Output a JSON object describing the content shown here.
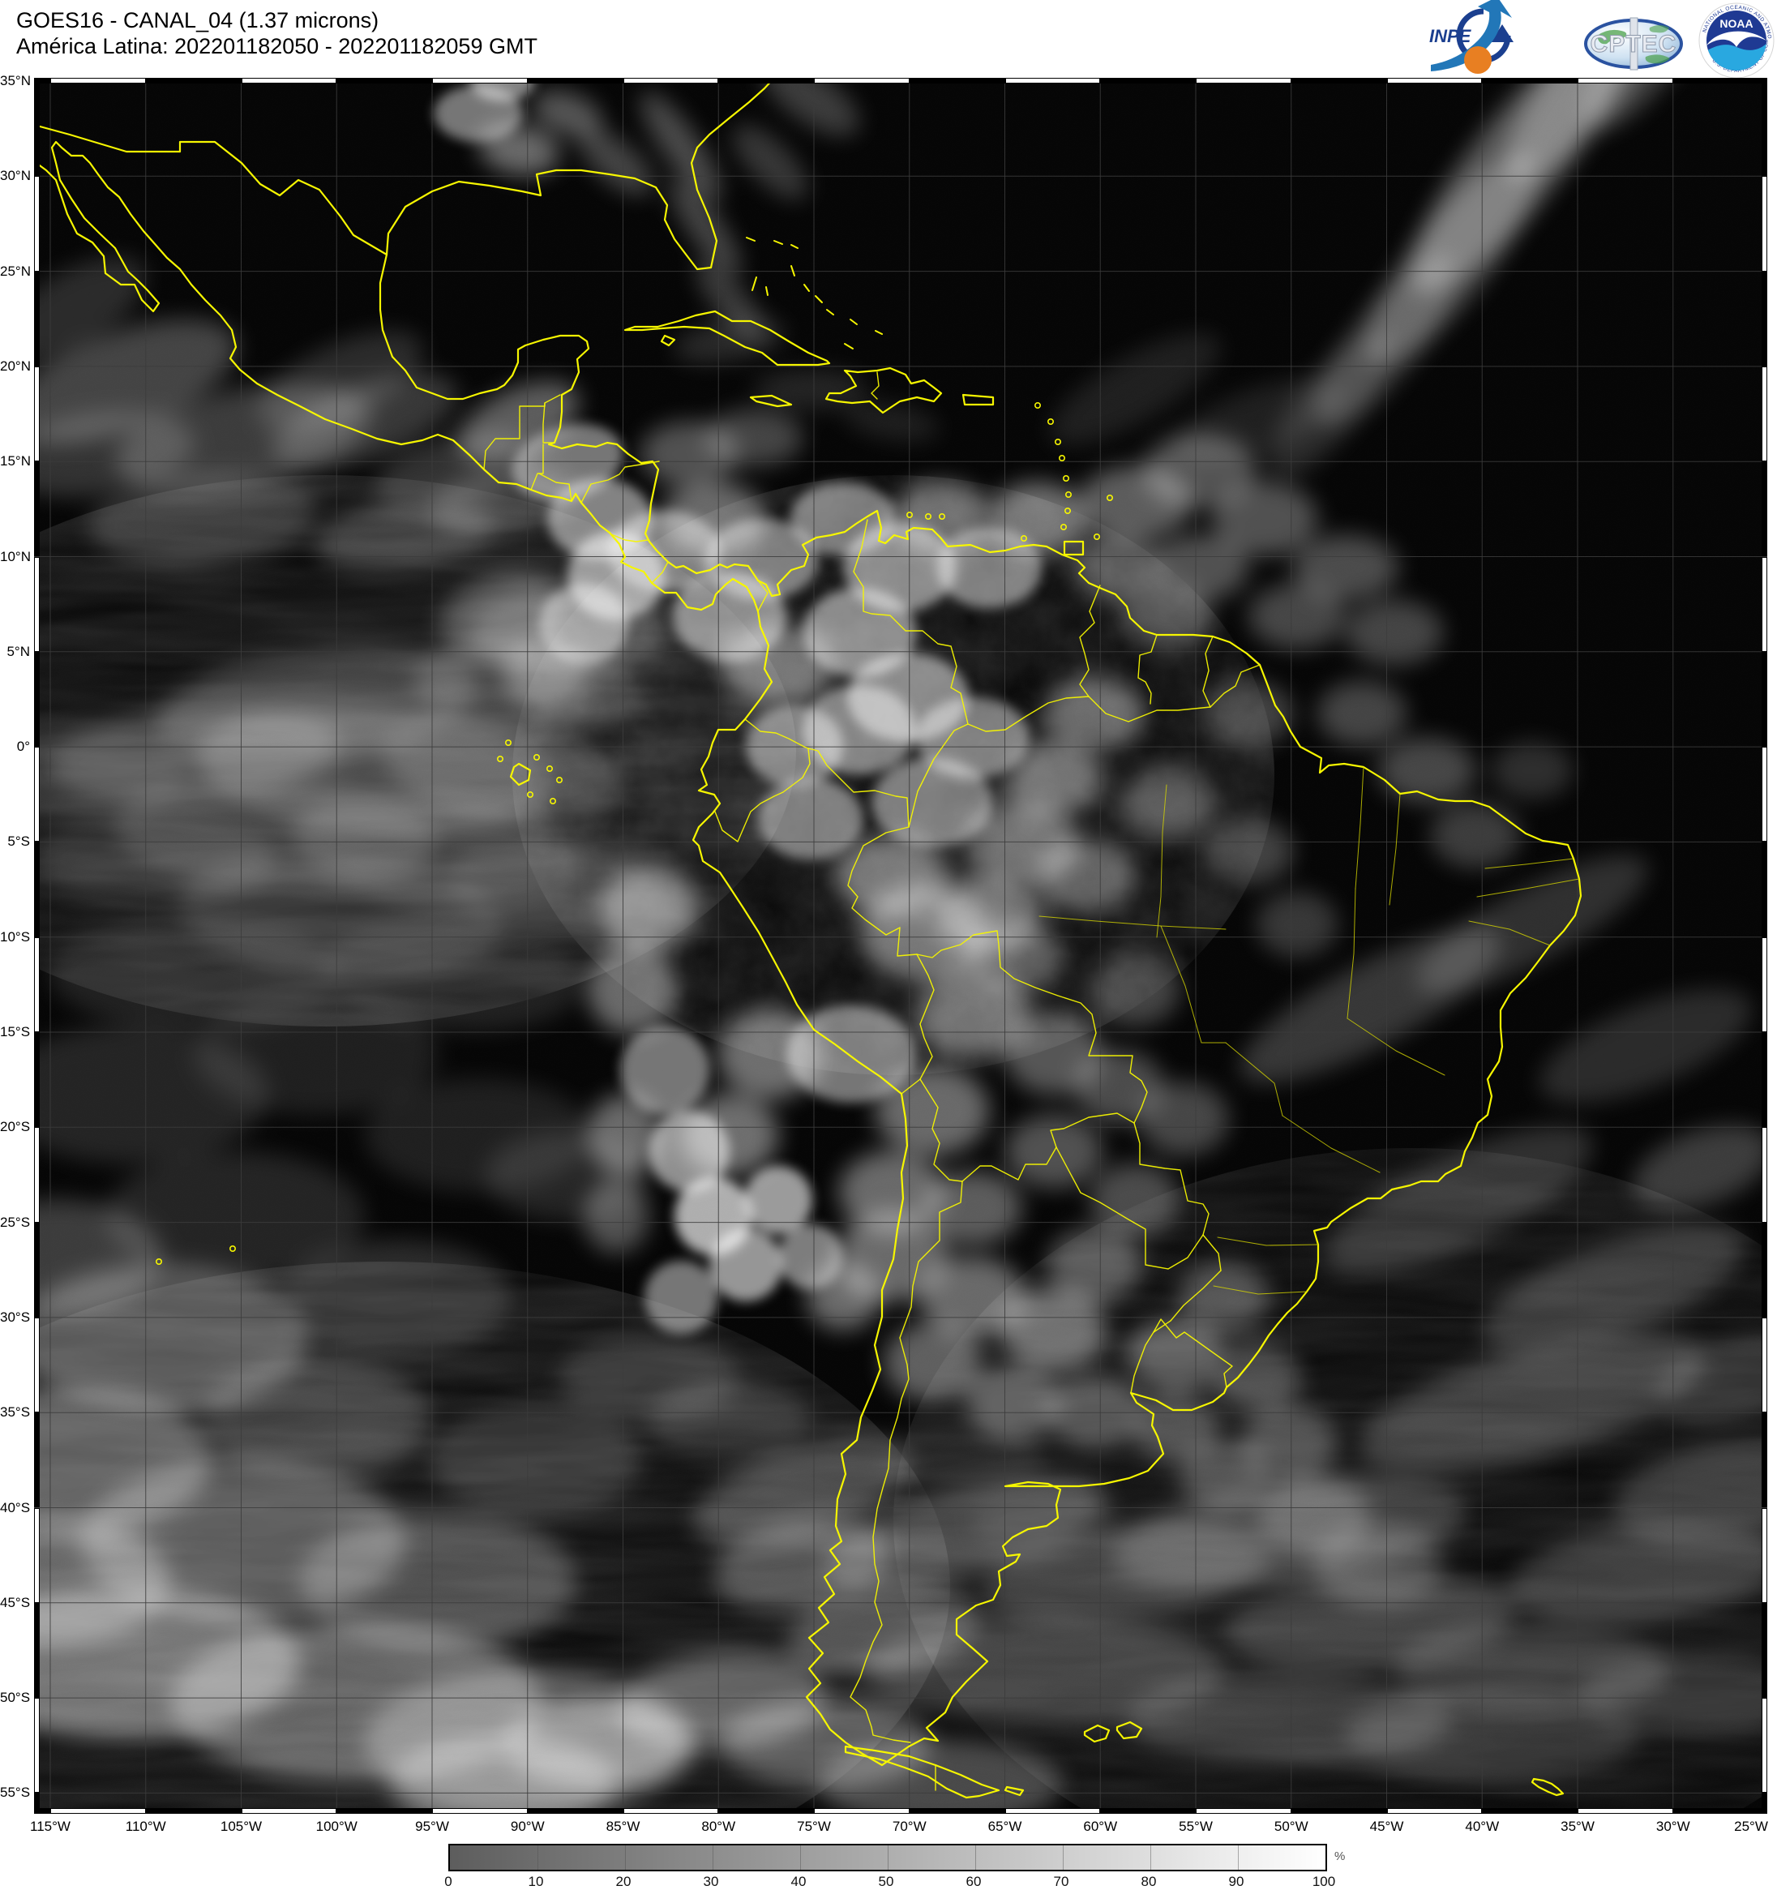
{
  "header": {
    "title_line1": "GOES16 - CANAL_04 (1.37 microns)",
    "title_line2": "América Latina: 202201182050 - 202201182059 GMT"
  },
  "logos": {
    "inpe_label": "INPE",
    "cptec_label": "CPTEC",
    "noaa_label": "NOAA",
    "noaa_ring_top": "NATIONAL OCEANIC AND ATMOSPHERIC ADMINISTRATION",
    "noaa_ring_bottom": "U.S. DEPARTMENT OF COMMERCE"
  },
  "map": {
    "lat_labels": [
      "35°N",
      "30°N",
      "25°N",
      "20°N",
      "15°N",
      "10°N",
      "5°N",
      "0°",
      "5°S",
      "10°S",
      "15°S",
      "20°S",
      "25°S",
      "30°S",
      "35°S",
      "40°S",
      "45°S",
      "50°S",
      "55°S"
    ],
    "lon_labels": [
      "115°W",
      "110°W",
      "105°W",
      "100°W",
      "95°W",
      "90°W",
      "85°W",
      "80°W",
      "75°W",
      "70°W",
      "65°W",
      "60°W",
      "55°W",
      "50°W",
      "45°W",
      "40°W",
      "35°W",
      "30°W",
      "25°W"
    ],
    "border_color": "#f6f600",
    "state_border_color": "#d6d600",
    "grid_color": "#3c3c3c",
    "background_color": "#030303"
  },
  "colorbar": {
    "tick_labels": [
      "0",
      "10",
      "20",
      "30",
      "40",
      "50",
      "60",
      "70",
      "80",
      "90",
      "100"
    ],
    "unit": "%",
    "min_color": "#5d5d5d",
    "max_color": "#ffffff"
  }
}
